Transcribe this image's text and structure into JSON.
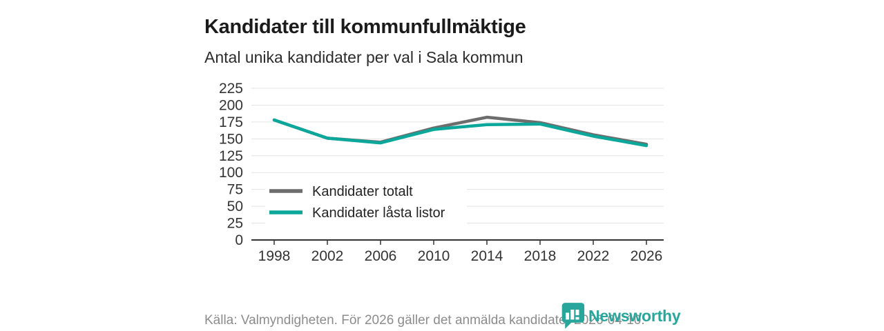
{
  "header": {
    "title": "Kandidater till kommunfullmäktige",
    "subtitle": "Antal unika kandidater per val i Sala kommun"
  },
  "chart_data": {
    "type": "line",
    "title": "Kandidater till kommunfullmäktige",
    "subtitle": "Antal unika kandidater per val i Sala kommun",
    "x": [
      1998,
      2002,
      2006,
      2010,
      2014,
      2018,
      2022,
      2026
    ],
    "series": [
      {
        "name": "Kandidater totalt",
        "color": "#6d6d6d",
        "values": [
          178,
          151,
          145,
          166,
          182,
          174,
          156,
          142
        ]
      },
      {
        "name": "Kandidater låsta listor",
        "color": "#0aa79a",
        "values": [
          178,
          151,
          144,
          164,
          171,
          172,
          154,
          140
        ]
      }
    ],
    "xlabel": "",
    "ylabel": "",
    "ylim": [
      0,
      225
    ],
    "yticks": [
      0,
      25,
      50,
      75,
      100,
      125,
      150,
      175,
      200,
      225
    ],
    "grid": true,
    "legend_position": "inside-bottom-left"
  },
  "footer": {
    "source": "Källa: Valmyndigheten. För 2026 gäller det anmälda kandidater 2026-04-10.",
    "brand": "Newsworthy"
  },
  "colors": {
    "teal": "#0aa79a",
    "gray": "#6d6d6d",
    "gridline": "#e3e3e3",
    "axis": "#333333",
    "tick_label": "#333333",
    "brand_teal": "#28a69b",
    "source_text": "#8c8c8c"
  }
}
